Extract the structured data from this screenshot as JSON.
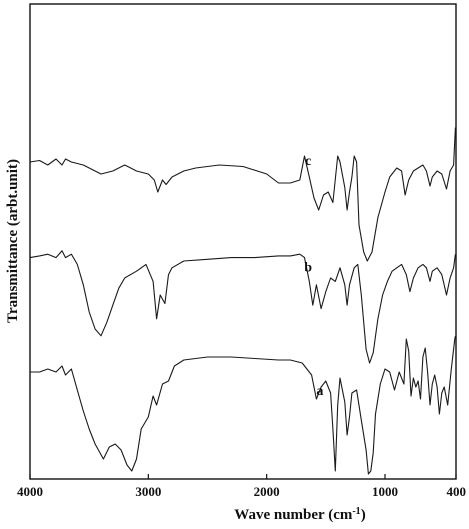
{
  "chart_data": {
    "type": "line",
    "xlabel": "Wave number (cm",
    "xlabel_sup": "-1",
    "xlabel_end": ")",
    "ylabel": "Transmittance (arbt.unit)",
    "xlim": [
      4000,
      400
    ],
    "x_reversed": true,
    "xticks": [
      4000,
      3000,
      2000,
      1000,
      400
    ],
    "tick_labels": [
      "4000",
      "3000",
      "2000",
      "1000",
      "400"
    ],
    "y_ticks_shown": false,
    "grid": false,
    "series": [
      {
        "name": "c",
        "baseline": 0.72,
        "points": [
          [
            4000,
            0.72
          ],
          [
            3920,
            0.73
          ],
          [
            3850,
            0.7
          ],
          [
            3780,
            0.74
          ],
          [
            3730,
            0.7
          ],
          [
            3700,
            0.74
          ],
          [
            3650,
            0.72
          ],
          [
            3550,
            0.7
          ],
          [
            3400,
            0.64
          ],
          [
            3300,
            0.66
          ],
          [
            3200,
            0.7
          ],
          [
            3100,
            0.66
          ],
          [
            3000,
            0.64
          ],
          [
            2950,
            0.6
          ],
          [
            2920,
            0.52
          ],
          [
            2880,
            0.6
          ],
          [
            2850,
            0.57
          ],
          [
            2800,
            0.62
          ],
          [
            2700,
            0.66
          ],
          [
            2600,
            0.68
          ],
          [
            2400,
            0.7
          ],
          [
            2200,
            0.69
          ],
          [
            2000,
            0.64
          ],
          [
            1900,
            0.58
          ],
          [
            1800,
            0.58
          ],
          [
            1720,
            0.6
          ],
          [
            1680,
            0.76
          ],
          [
            1640,
            0.62
          ],
          [
            1600,
            0.48
          ],
          [
            1560,
            0.4
          ],
          [
            1520,
            0.5
          ],
          [
            1480,
            0.52
          ],
          [
            1440,
            0.45
          ],
          [
            1400,
            0.76
          ],
          [
            1380,
            0.72
          ],
          [
            1340,
            0.55
          ],
          [
            1320,
            0.4
          ],
          [
            1300,
            0.52
          ],
          [
            1280,
            0.62
          ],
          [
            1260,
            0.76
          ],
          [
            1240,
            0.72
          ],
          [
            1220,
            0.3
          ],
          [
            1180,
            0.12
          ],
          [
            1150,
            0.06
          ],
          [
            1110,
            0.12
          ],
          [
            1060,
            0.35
          ],
          [
            1000,
            0.52
          ],
          [
            960,
            0.62
          ],
          [
            900,
            0.68
          ],
          [
            860,
            0.66
          ],
          [
            830,
            0.5
          ],
          [
            800,
            0.6
          ],
          [
            760,
            0.66
          ],
          [
            720,
            0.68
          ],
          [
            680,
            0.7
          ],
          [
            650,
            0.66
          ],
          [
            620,
            0.56
          ],
          [
            600,
            0.62
          ],
          [
            560,
            0.66
          ],
          [
            520,
            0.64
          ],
          [
            480,
            0.54
          ],
          [
            450,
            0.66
          ],
          [
            420,
            0.7
          ],
          [
            405,
            0.95
          ]
        ]
      },
      {
        "name": "b",
        "baseline": 0.72,
        "points": [
          [
            4000,
            0.72
          ],
          [
            3920,
            0.73
          ],
          [
            3850,
            0.74
          ],
          [
            3780,
            0.72
          ],
          [
            3730,
            0.76
          ],
          [
            3700,
            0.72
          ],
          [
            3650,
            0.74
          ],
          [
            3600,
            0.68
          ],
          [
            3550,
            0.56
          ],
          [
            3500,
            0.4
          ],
          [
            3450,
            0.3
          ],
          [
            3400,
            0.26
          ],
          [
            3350,
            0.34
          ],
          [
            3300,
            0.44
          ],
          [
            3250,
            0.54
          ],
          [
            3200,
            0.6
          ],
          [
            3100,
            0.64
          ],
          [
            3020,
            0.68
          ],
          [
            2960,
            0.58
          ],
          [
            2930,
            0.36
          ],
          [
            2900,
            0.5
          ],
          [
            2860,
            0.45
          ],
          [
            2830,
            0.62
          ],
          [
            2800,
            0.66
          ],
          [
            2700,
            0.7
          ],
          [
            2500,
            0.71
          ],
          [
            2300,
            0.72
          ],
          [
            2100,
            0.72
          ],
          [
            1900,
            0.73
          ],
          [
            1800,
            0.73
          ],
          [
            1720,
            0.74
          ],
          [
            1680,
            0.72
          ],
          [
            1640,
            0.58
          ],
          [
            1610,
            0.44
          ],
          [
            1580,
            0.56
          ],
          [
            1540,
            0.42
          ],
          [
            1500,
            0.52
          ],
          [
            1460,
            0.6
          ],
          [
            1420,
            0.58
          ],
          [
            1380,
            0.66
          ],
          [
            1340,
            0.56
          ],
          [
            1320,
            0.44
          ],
          [
            1300,
            0.56
          ],
          [
            1260,
            0.66
          ],
          [
            1230,
            0.68
          ],
          [
            1200,
            0.5
          ],
          [
            1160,
            0.18
          ],
          [
            1130,
            0.1
          ],
          [
            1100,
            0.16
          ],
          [
            1060,
            0.36
          ],
          [
            1020,
            0.5
          ],
          [
            980,
            0.58
          ],
          [
            940,
            0.64
          ],
          [
            900,
            0.66
          ],
          [
            860,
            0.68
          ],
          [
            820,
            0.62
          ],
          [
            790,
            0.52
          ],
          [
            760,
            0.6
          ],
          [
            720,
            0.66
          ],
          [
            680,
            0.68
          ],
          [
            650,
            0.66
          ],
          [
            620,
            0.58
          ],
          [
            600,
            0.64
          ],
          [
            560,
            0.66
          ],
          [
            520,
            0.62
          ],
          [
            480,
            0.5
          ],
          [
            450,
            0.6
          ],
          [
            420,
            0.66
          ],
          [
            405,
            0.74
          ]
        ]
      },
      {
        "name": "a",
        "baseline": 0.72,
        "points": [
          [
            4000,
            0.72
          ],
          [
            3920,
            0.72
          ],
          [
            3850,
            0.74
          ],
          [
            3780,
            0.72
          ],
          [
            3730,
            0.76
          ],
          [
            3700,
            0.7
          ],
          [
            3650,
            0.74
          ],
          [
            3600,
            0.6
          ],
          [
            3550,
            0.46
          ],
          [
            3500,
            0.34
          ],
          [
            3450,
            0.24
          ],
          [
            3380,
            0.14
          ],
          [
            3330,
            0.22
          ],
          [
            3280,
            0.24
          ],
          [
            3230,
            0.2
          ],
          [
            3180,
            0.1
          ],
          [
            3140,
            0.06
          ],
          [
            3100,
            0.14
          ],
          [
            3060,
            0.34
          ],
          [
            3000,
            0.42
          ],
          [
            2960,
            0.56
          ],
          [
            2930,
            0.5
          ],
          [
            2880,
            0.64
          ],
          [
            2830,
            0.66
          ],
          [
            2780,
            0.76
          ],
          [
            2700,
            0.8
          ],
          [
            2500,
            0.82
          ],
          [
            2300,
            0.82
          ],
          [
            2100,
            0.81
          ],
          [
            1900,
            0.8
          ],
          [
            1800,
            0.8
          ],
          [
            1700,
            0.78
          ],
          [
            1620,
            0.7
          ],
          [
            1580,
            0.54
          ],
          [
            1540,
            0.62
          ],
          [
            1500,
            0.66
          ],
          [
            1460,
            0.58
          ],
          [
            1440,
            0.34
          ],
          [
            1420,
            0.06
          ],
          [
            1400,
            0.5
          ],
          [
            1380,
            0.68
          ],
          [
            1360,
            0.6
          ],
          [
            1340,
            0.52
          ],
          [
            1320,
            0.3
          ],
          [
            1300,
            0.42
          ],
          [
            1280,
            0.58
          ],
          [
            1240,
            0.6
          ],
          [
            1200,
            0.4
          ],
          [
            1160,
            0.2
          ],
          [
            1140,
            0.04
          ],
          [
            1120,
            0.06
          ],
          [
            1100,
            0.18
          ],
          [
            1080,
            0.44
          ],
          [
            1040,
            0.64
          ],
          [
            1000,
            0.74
          ],
          [
            960,
            0.72
          ],
          [
            920,
            0.6
          ],
          [
            880,
            0.72
          ],
          [
            840,
            0.64
          ],
          [
            820,
            0.94
          ],
          [
            800,
            0.86
          ],
          [
            780,
            0.56
          ],
          [
            760,
            0.68
          ],
          [
            740,
            0.62
          ],
          [
            720,
            0.66
          ],
          [
            700,
            0.54
          ],
          [
            680,
            0.82
          ],
          [
            660,
            0.88
          ],
          [
            640,
            0.72
          ],
          [
            620,
            0.5
          ],
          [
            600,
            0.64
          ],
          [
            580,
            0.7
          ],
          [
            560,
            0.62
          ],
          [
            540,
            0.44
          ],
          [
            520,
            0.58
          ],
          [
            500,
            0.62
          ],
          [
            470,
            0.5
          ],
          [
            440,
            0.74
          ],
          [
            410,
            0.94
          ],
          [
            405,
            0.96
          ]
        ]
      }
    ]
  }
}
